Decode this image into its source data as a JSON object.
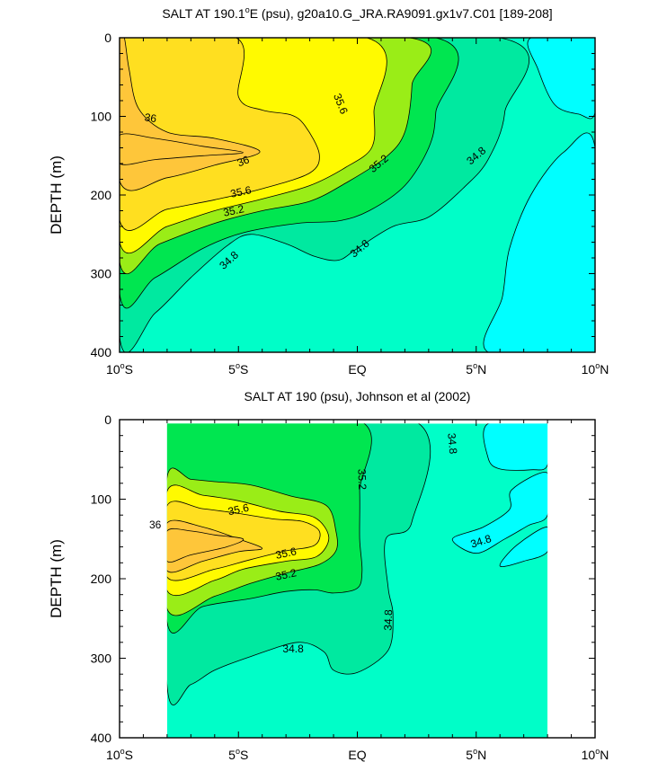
{
  "chart_data": [
    {
      "type": "contour",
      "title": "SALT AT 190.1°E (psu), g20a10.G_JRA.RA9091.gx1v7.C01 [189-208]",
      "title_parts": [
        "SALT AT 190.1",
        "o",
        "E (psu), g20a10.G_JRA.RA9091.gx1v7.C01 [189-208]"
      ],
      "ylabel": "DEPTH (m)",
      "xlabel": "",
      "xlim": [
        -10,
        10
      ],
      "ylim": [
        400,
        0
      ],
      "x_ticks": [
        {
          "value": -10,
          "num": "10",
          "deg": "o",
          "hem": "S"
        },
        {
          "value": -5,
          "num": "5",
          "deg": "o",
          "hem": "S"
        },
        {
          "value": 0,
          "num": "EQ",
          "deg": "",
          "hem": ""
        },
        {
          "value": 5,
          "num": "5",
          "deg": "o",
          "hem": "N"
        },
        {
          "value": 10,
          "num": "10",
          "deg": "o",
          "hem": "N"
        }
      ],
      "y_ticks": [
        0,
        100,
        200,
        300,
        400
      ],
      "data_extent": {
        "lat": [
          -10,
          10
        ],
        "depth": [
          0,
          400
        ]
      },
      "contour_levels": [
        34.8,
        35.0,
        35.2,
        35.4,
        35.6,
        35.8,
        36.0
      ],
      "fill_colors": {
        "below_34.8": "#00ffff",
        "34.8-35.0": "#00fec8",
        "35.0-35.2": "#00e9a0",
        "35.2-35.4": "#00e650",
        "35.4-35.6": "#9aed17",
        "35.6-35.8": "#fffa00",
        "35.8-36.0": "#ffdf20",
        "above_36.0": "#fec63a"
      },
      "regions": [
        {
          "level": 35.0,
          "points": [
            [
              -10,
              380
            ],
            [
              -8.5,
              350
            ],
            [
              -7,
              305
            ],
            [
              -5.5,
              265
            ],
            [
              -4.5,
              250
            ],
            [
              -3,
              262
            ],
            [
              -1.8,
              278
            ],
            [
              -0.8,
              283
            ],
            [
              0,
              268
            ],
            [
              1.5,
              240
            ],
            [
              3,
              228
            ],
            [
              4.5,
              190
            ],
            [
              5.5,
              155
            ],
            [
              6.2,
              95
            ],
            [
              6,
              0
            ],
            [
              -10,
              0
            ]
          ]
        },
        {
          "level": 35.2,
          "points": [
            [
              -10,
              325
            ],
            [
              -8.5,
              305
            ],
            [
              -6.5,
              268
            ],
            [
              -4.8,
              248
            ],
            [
              -2.5,
              236
            ],
            [
              -0.8,
              233
            ],
            [
              0.5,
              220
            ],
            [
              2,
              188
            ],
            [
              3,
              140
            ],
            [
              3.3,
              95
            ],
            [
              3.3,
              0
            ],
            [
              -10,
              0
            ]
          ]
        },
        {
          "level": 35.4,
          "points": [
            [
              -10,
              285
            ],
            [
              -8.3,
              262
            ],
            [
              -6,
              236
            ],
            [
              -4,
              220
            ],
            [
              -2,
              208
            ],
            [
              -0.5,
              185
            ],
            [
              1.2,
              152
            ],
            [
              2,
              120
            ],
            [
              2.3,
              60
            ],
            [
              2.2,
              0
            ],
            [
              -10,
              0
            ]
          ]
        },
        {
          "level": 35.6,
          "points": [
            [
              -10,
              260
            ],
            [
              -8,
              240
            ],
            [
              -6,
              220
            ],
            [
              -4,
              205
            ],
            [
              -2,
              188
            ],
            [
              -0.5,
              165
            ],
            [
              0.6,
              140
            ],
            [
              0.7,
              95
            ],
            [
              0.4,
              0
            ],
            [
              -10,
              0
            ]
          ]
        },
        {
          "level": 35.8,
          "points": [
            [
              -10,
              232
            ],
            [
              -8,
              218
            ],
            [
              -6,
              206
            ],
            [
              -4,
              192
            ],
            [
              -2,
              172
            ],
            [
              -1.6,
              148
            ],
            [
              -2.2,
              112
            ],
            [
              -2.8,
              98
            ],
            [
              -4,
              92
            ],
            [
              -5,
              75
            ],
            [
              -5.1,
              0
            ],
            [
              -10,
              0
            ]
          ]
        },
        {
          "level": 36.0,
          "points": [
            [
              -10,
              182
            ],
            [
              -8,
              178
            ],
            [
              -6,
              162
            ],
            [
              -4.1,
              145
            ],
            [
              -6,
              128
            ],
            [
              -8,
              120
            ],
            [
              -9.2,
              90
            ],
            [
              -9.6,
              40
            ],
            [
              -9.8,
              0
            ],
            [
              -10,
              0
            ]
          ]
        },
        {
          "level": 36.2,
          "points": [
            [
              -10,
              160
            ],
            [
              -8.5,
              155
            ],
            [
              -6.5,
              150
            ],
            [
              -4.8,
              146
            ],
            [
              -6.5,
              138
            ],
            [
              -8.5,
              128
            ],
            [
              -10,
              124
            ]
          ]
        }
      ],
      "lows": [
        {
          "level": 34.6,
          "points": [
            [
              10,
              400
            ],
            [
              5.5,
              400
            ],
            [
              6.1,
              330
            ],
            [
              6.4,
              268
            ],
            [
              7.3,
              200
            ],
            [
              8.7,
              145
            ],
            [
              10,
              140
            ]
          ]
        },
        {
          "level": 34.6,
          "points": [
            [
              10,
              0
            ],
            [
              7.3,
              0
            ],
            [
              7.6,
              40
            ],
            [
              8.3,
              85
            ],
            [
              9.3,
              97
            ],
            [
              10,
              95
            ]
          ]
        }
      ],
      "labels": [
        {
          "text": "36",
          "x": -8.7,
          "y": 102,
          "rot": 8
        },
        {
          "text": "36",
          "x": -4.8,
          "y": 157,
          "rot": -22
        },
        {
          "text": "35.6",
          "x": -4.9,
          "y": 196,
          "rot": -12
        },
        {
          "text": "35.2",
          "x": -5.2,
          "y": 220,
          "rot": -12
        },
        {
          "text": "34.8",
          "x": -5.4,
          "y": 283,
          "rot": -42
        },
        {
          "text": "35.6",
          "x": -0.7,
          "y": 84,
          "rot": 68
        },
        {
          "text": "35.2",
          "x": 0.9,
          "y": 160,
          "rot": -40
        },
        {
          "text": "34.8",
          "x": 0.1,
          "y": 268,
          "rot": -40
        },
        {
          "text": "34.8",
          "x": 5,
          "y": 150,
          "rot": -40
        }
      ]
    },
    {
      "type": "contour",
      "title": "SALT AT 190 (psu), Johnson et al (2002)",
      "title_parts": [
        "SALT AT 190 (psu), Johnson et al (2002)",
        "",
        ""
      ],
      "ylabel": "DEPTH (m)",
      "xlabel": "",
      "xlim": [
        -10,
        10
      ],
      "ylim": [
        400,
        0
      ],
      "x_ticks": [
        {
          "value": -10,
          "num": "10",
          "deg": "o",
          "hem": "S"
        },
        {
          "value": -5,
          "num": "5",
          "deg": "o",
          "hem": "S"
        },
        {
          "value": 0,
          "num": "EQ",
          "deg": "",
          "hem": ""
        },
        {
          "value": 5,
          "num": "5",
          "deg": "o",
          "hem": "N"
        },
        {
          "value": 10,
          "num": "10",
          "deg": "o",
          "hem": "N"
        }
      ],
      "y_ticks": [
        0,
        100,
        200,
        300,
        400
      ],
      "data_extent": {
        "lat": [
          -8,
          8
        ],
        "depth": [
          5,
          400
        ]
      },
      "contour_levels": [
        34.8,
        35.0,
        35.2,
        35.4,
        35.6,
        35.8,
        36.0
      ],
      "fill_colors": {
        "below_34.8": "#00ffff",
        "34.8-35.0": "#00fec8",
        "35.0-35.2": "#00e9a0",
        "35.2-35.4": "#00e650",
        "35.4-35.6": "#9aed17",
        "35.6-35.8": "#fffa00",
        "35.8-36.0": "#ffdf20",
        "above_36.0": "#fec63a"
      },
      "regions": [
        {
          "level": 35.0,
          "points": [
            [
              -8,
              335
            ],
            [
              -7,
              333
            ],
            [
              -6,
              315
            ],
            [
              -4.5,
              298
            ],
            [
              -2.5,
              280
            ],
            [
              -1.4,
              292
            ],
            [
              -1,
              315
            ],
            [
              0,
              318
            ],
            [
              1.3,
              290
            ],
            [
              1.5,
              245
            ],
            [
              1.3,
              212
            ],
            [
              1.2,
              150
            ],
            [
              2.3,
              128
            ],
            [
              2.3,
              0
            ],
            [
              -8,
              0
            ]
          ]
        },
        {
          "level": 35.2,
          "points": [
            [
              -8,
              255
            ],
            [
              -6.5,
              235
            ],
            [
              -4.5,
              225
            ],
            [
              -3,
              216
            ],
            [
              -1.8,
              214
            ],
            [
              -1,
              218
            ],
            [
              0,
              212
            ],
            [
              0.2,
              190
            ],
            [
              0.1,
              150
            ],
            [
              0.1,
              90
            ],
            [
              0,
              0
            ],
            [
              -8,
              0
            ]
          ]
        },
        {
          "level": 35.4,
          "points": [
            [
              -8,
              238
            ],
            [
              -6,
              222
            ],
            [
              -4.5,
              206
            ],
            [
              -3,
              193
            ],
            [
              -1.6,
              182
            ],
            [
              -0.9,
              165
            ],
            [
              -0.9,
              140
            ],
            [
              -1.3,
              108
            ],
            [
              -2.8,
              96
            ],
            [
              -4.5,
              82
            ],
            [
              -6,
              78
            ],
            [
              -7,
              75
            ],
            [
              -8,
              72
            ]
          ]
        },
        {
          "level": 35.6,
          "points": [
            [
              -8,
              215
            ],
            [
              -6,
              202
            ],
            [
              -4.8,
              188
            ],
            [
              -3,
              178
            ],
            [
              -1.7,
              172
            ],
            [
              -1.2,
              148
            ],
            [
              -1.8,
              123
            ],
            [
              -3.3,
              115
            ],
            [
              -5,
              102
            ],
            [
              -6.5,
              95
            ],
            [
              -8,
              90
            ]
          ]
        },
        {
          "level": 35.8,
          "points": [
            [
              -8,
              198
            ],
            [
              -6,
              188
            ],
            [
              -4.5,
              176
            ],
            [
              -3,
              165
            ],
            [
              -1.8,
              158
            ],
            [
              -1.6,
              140
            ],
            [
              -2.3,
              128
            ],
            [
              -3.5,
              125
            ],
            [
              -5,
              118
            ],
            [
              -6.5,
              112
            ],
            [
              -8,
              108
            ]
          ]
        },
        {
          "level": 36.0,
          "points": [
            [
              -8,
              190
            ],
            [
              -6.5,
              178
            ],
            [
              -5,
              166
            ],
            [
              -4,
              162
            ],
            [
              -5,
              150
            ],
            [
              -6.5,
              135
            ],
            [
              -8,
              130
            ]
          ]
        },
        {
          "level": 36.2,
          "points": [
            [
              -8,
              178
            ],
            [
              -7,
              170
            ],
            [
              -5.5,
              160
            ],
            [
              -4.8,
              150
            ],
            [
              -6,
              145
            ],
            [
              -7,
              140
            ],
            [
              -8,
              140
            ]
          ]
        }
      ],
      "lows": [
        {
          "level": 34.6,
          "points": [
            [
              8,
              5
            ],
            [
              5.5,
              5
            ],
            [
              5.5,
              48
            ],
            [
              6,
              62
            ],
            [
              7.3,
              63
            ],
            [
              8,
              57
            ]
          ]
        },
        {
          "level": 34.6,
          "points": [
            [
              8,
              67
            ],
            [
              6.5,
              88
            ],
            [
              6.4,
              113
            ],
            [
              5.3,
              135
            ],
            [
              4,
              150
            ],
            [
              5,
              168
            ],
            [
              6.2,
              150
            ],
            [
              7.2,
              133
            ],
            [
              8,
              120
            ]
          ]
        },
        {
          "level": 34.6,
          "points": [
            [
              8,
              166
            ],
            [
              7,
              178
            ],
            [
              6,
              184
            ],
            [
              6.7,
              158
            ],
            [
              8,
              135
            ]
          ]
        }
      ],
      "labels": [
        {
          "text": "35.2",
          "x": 0.2,
          "y": 75,
          "rot": 88
        },
        {
          "text": "34.8",
          "x": 4,
          "y": 30,
          "rot": 85
        },
        {
          "text": "35.6",
          "x": -5,
          "y": 113,
          "rot": -12
        },
        {
          "text": "36",
          "x": -8.5,
          "y": 132,
          "rot": 0
        },
        {
          "text": "35.6",
          "x": -3,
          "y": 168,
          "rot": -12
        },
        {
          "text": "35.2",
          "x": -3,
          "y": 195,
          "rot": -12
        },
        {
          "text": "34.8",
          "x": 5.2,
          "y": 153,
          "rot": -18
        },
        {
          "text": "34.8",
          "x": 1.3,
          "y": 252,
          "rot": -88
        },
        {
          "text": "34.8",
          "x": -2.7,
          "y": 288,
          "rot": 0
        }
      ]
    }
  ]
}
